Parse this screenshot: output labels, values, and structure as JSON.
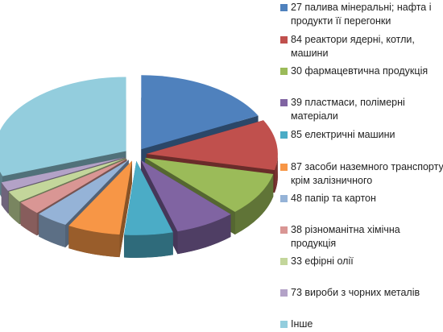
{
  "chart_data": {
    "type": "pie",
    "style": "3d-exploded",
    "legend_position": "right",
    "categories": [
      "27 палива мінеральні; нафта і продукти її перегонки",
      "84 реактори ядерні, котли, машини",
      "30 фармацевтична продукція",
      "39 пластмаси, полімерні матеріали",
      "85 електричні машини",
      "87 засоби наземного транспорту крім залізничного",
      "48 папір та картон",
      "38 різноманітна хімічна продукція",
      "33 ефірні олії",
      "73 вироби з чорних металів",
      "Інше"
    ],
    "values": [
      17.5,
      11.0,
      9.5,
      7.5,
      6.0,
      6.5,
      4.0,
      3.0,
      2.5,
      2.0,
      30.5
    ],
    "colors": [
      "#4f81bd",
      "#c0504d",
      "#9bbb59",
      "#8064a2",
      "#4bacc6",
      "#f79646",
      "#95b3d7",
      "#d99694",
      "#c3d69b",
      "#b3a2c7",
      "#93cddd"
    ]
  }
}
